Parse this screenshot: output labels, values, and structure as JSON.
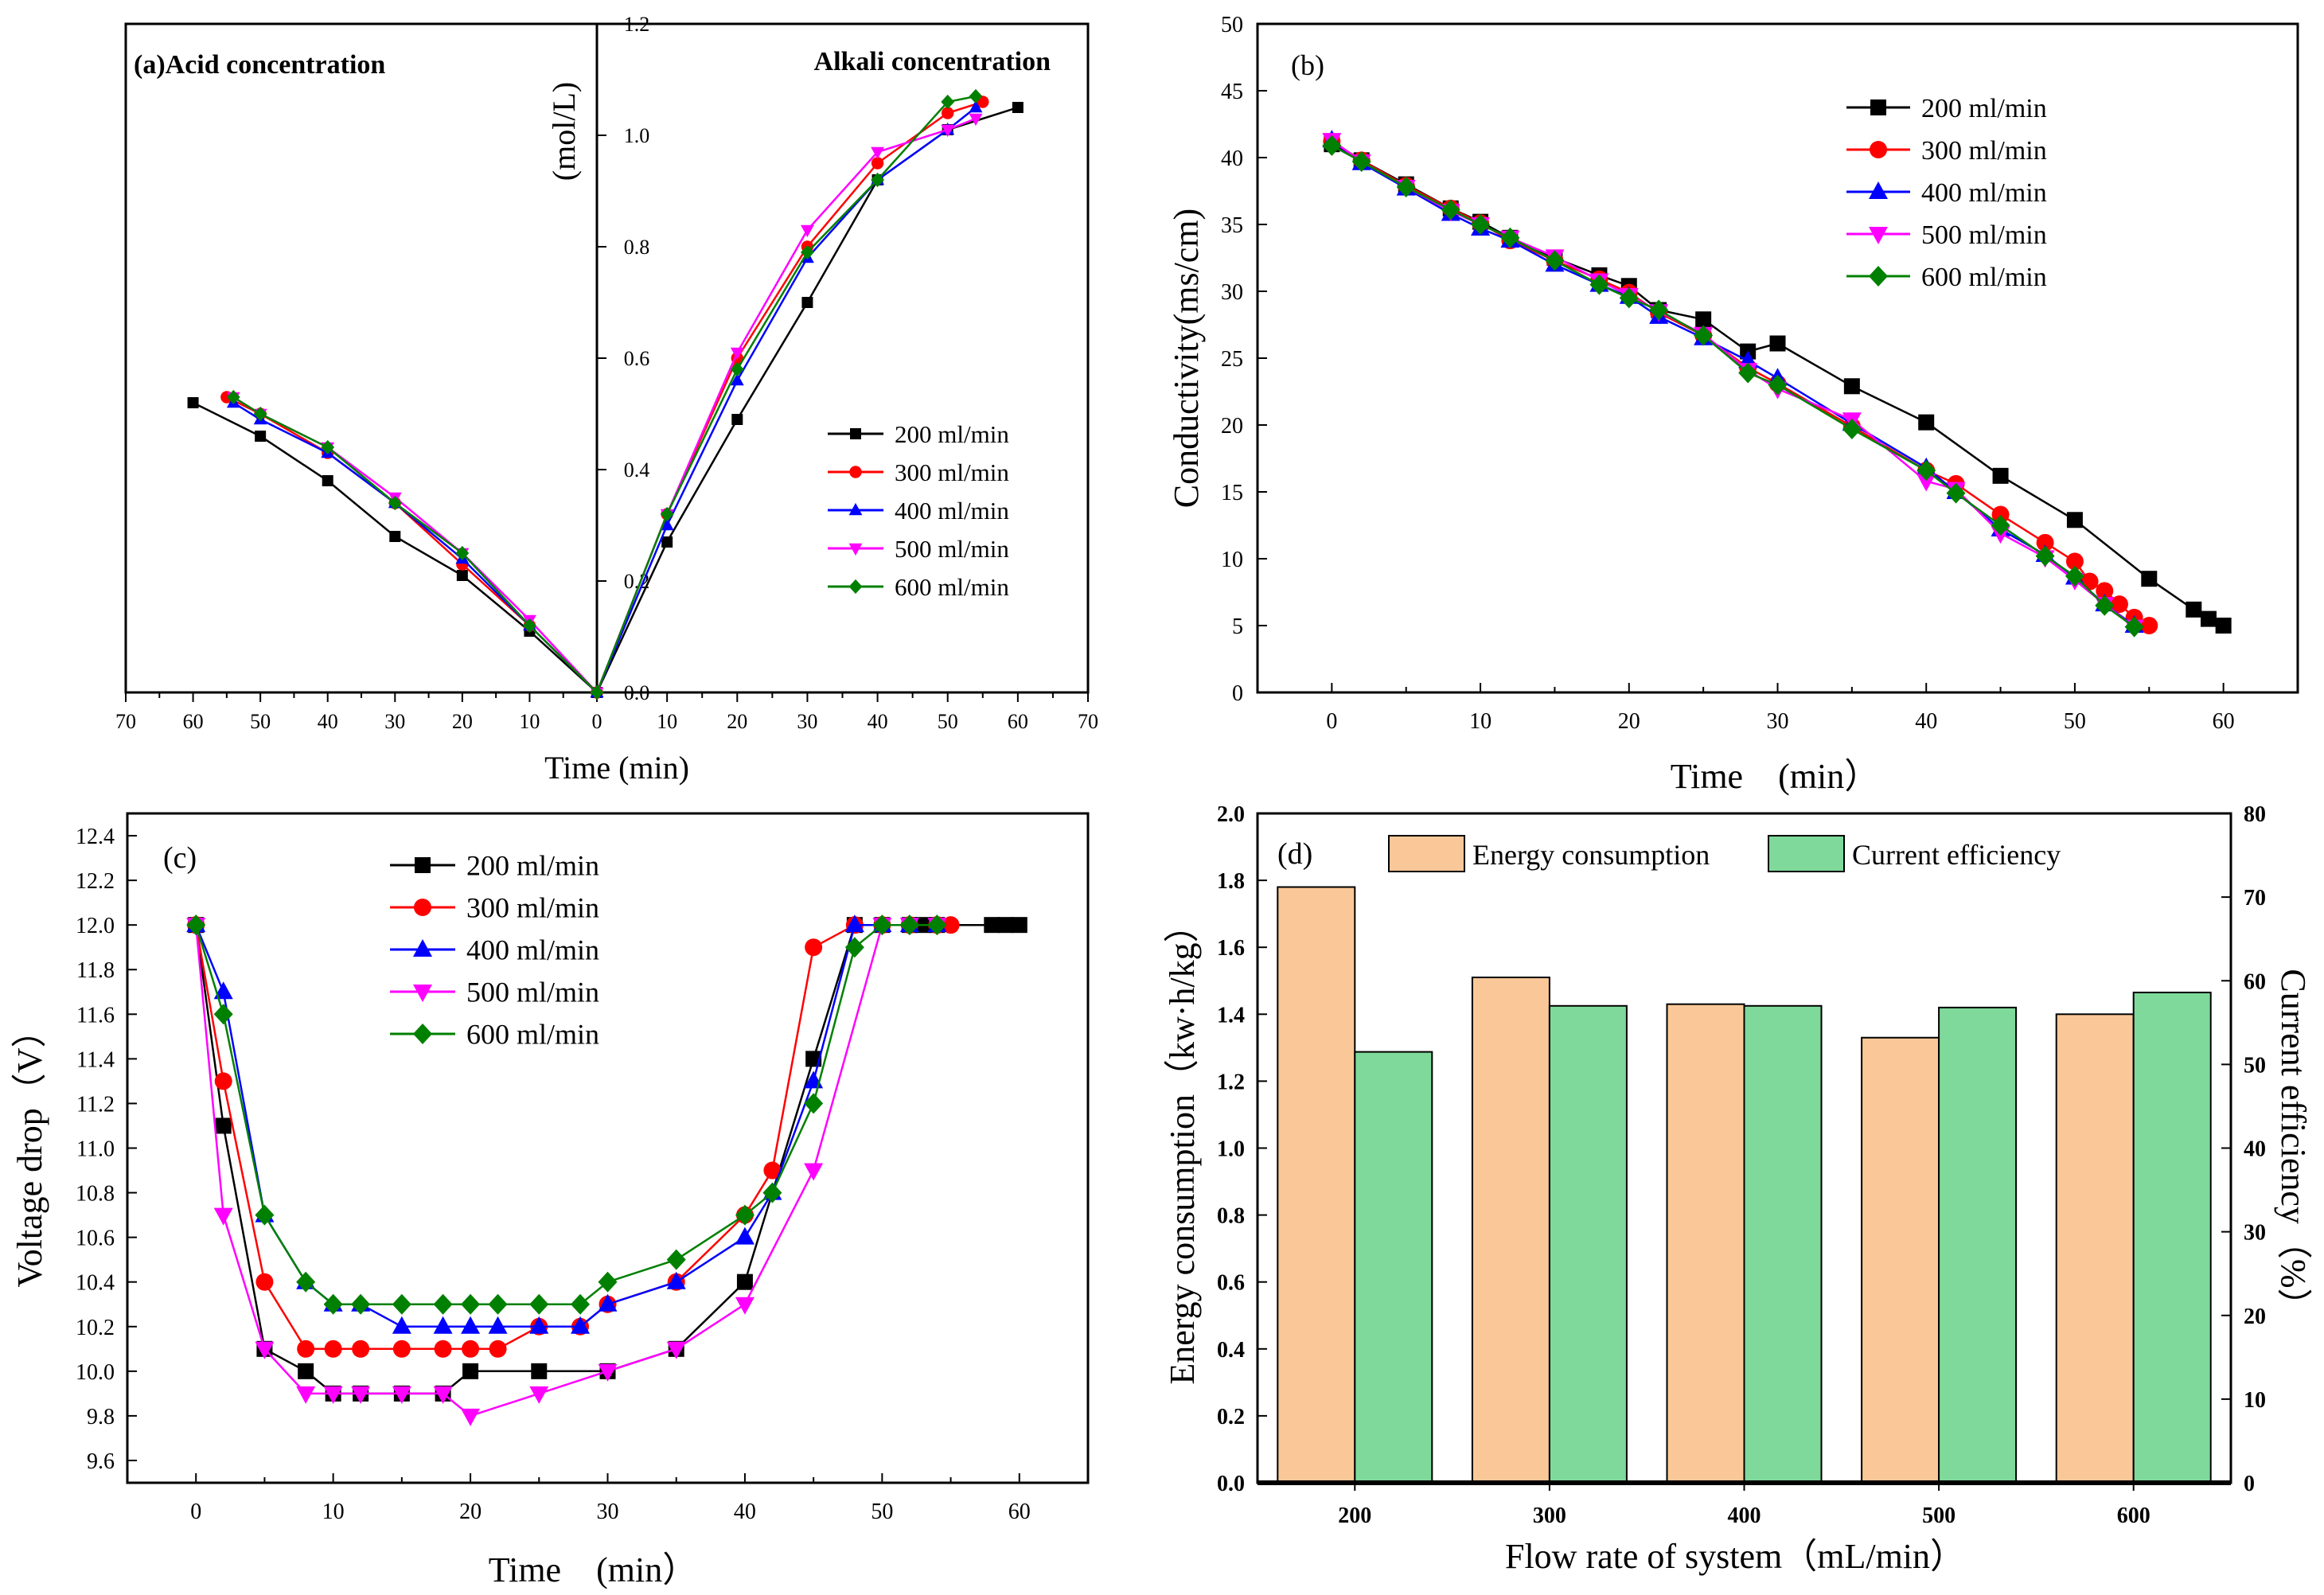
{
  "chart_data": [
    {
      "id": "a",
      "type": "line",
      "panel_label": "(a)Acid concentration",
      "right_title": "Alkali concentration",
      "xlabel": "Time (min)",
      "ylabel": "(mol/L)",
      "x_ticks": [
        "70",
        "60",
        "50",
        "40",
        "30",
        "20",
        "10",
        "0",
        "10",
        "20",
        "30",
        "40",
        "50",
        "60",
        "70"
      ],
      "y_ticks": [
        "0.0",
        "0.2",
        "0.4",
        "0.6",
        "0.8",
        "1.0",
        "1.2"
      ],
      "xlim_acid": [
        70,
        0
      ],
      "xlim_alkali": [
        0,
        70
      ],
      "ylim": [
        0,
        1.2
      ],
      "series": [
        {
          "name": "200 ml/min",
          "color": "#000000",
          "marker": "square",
          "acid": [
            [
              60,
              0.52
            ],
            [
              50,
              0.46
            ],
            [
              40,
              0.38
            ],
            [
              30,
              0.28
            ],
            [
              20,
              0.21
            ],
            [
              10,
              0.11
            ],
            [
              0,
              0
            ]
          ],
          "alkali": [
            [
              0,
              0
            ],
            [
              10,
              0.27
            ],
            [
              20,
              0.49
            ],
            [
              30,
              0.7
            ],
            [
              40,
              0.92
            ],
            [
              50,
              1.01
            ],
            [
              60,
              1.05
            ]
          ]
        },
        {
          "name": "300 ml/min",
          "color": "#ff0000",
          "marker": "circle",
          "acid": [
            [
              55,
              0.53
            ],
            [
              50,
              0.5
            ],
            [
              40,
              0.43
            ],
            [
              30,
              0.34
            ],
            [
              20,
              0.23
            ],
            [
              10,
              0.12
            ],
            [
              0,
              0
            ]
          ],
          "alkali": [
            [
              0,
              0
            ],
            [
              10,
              0.32
            ],
            [
              20,
              0.6
            ],
            [
              30,
              0.8
            ],
            [
              40,
              0.95
            ],
            [
              50,
              1.04
            ],
            [
              55,
              1.06
            ]
          ]
        },
        {
          "name": "400 ml/min",
          "color": "#0000ff",
          "marker": "triangle",
          "acid": [
            [
              54,
              0.52
            ],
            [
              50,
              0.49
            ],
            [
              40,
              0.43
            ],
            [
              30,
              0.34
            ],
            [
              20,
              0.24
            ],
            [
              10,
              0.12
            ],
            [
              0,
              0
            ]
          ],
          "alkali": [
            [
              0,
              0
            ],
            [
              10,
              0.3
            ],
            [
              20,
              0.56
            ],
            [
              30,
              0.78
            ],
            [
              40,
              0.92
            ],
            [
              50,
              1.01
            ],
            [
              54,
              1.05
            ]
          ]
        },
        {
          "name": "500 ml/min",
          "color": "#ff00ff",
          "marker": "triangle-down",
          "acid": [
            [
              54,
              0.53
            ],
            [
              50,
              0.5
            ],
            [
              40,
              0.44
            ],
            [
              30,
              0.35
            ],
            [
              20,
              0.25
            ],
            [
              10,
              0.13
            ],
            [
              0,
              0
            ]
          ],
          "alkali": [
            [
              0,
              0
            ],
            [
              10,
              0.32
            ],
            [
              20,
              0.61
            ],
            [
              30,
              0.83
            ],
            [
              40,
              0.97
            ],
            [
              50,
              1.01
            ],
            [
              54,
              1.03
            ]
          ]
        },
        {
          "name": "600 ml/min",
          "color": "#008000",
          "marker": "diamond",
          "acid": [
            [
              54,
              0.53
            ],
            [
              50,
              0.5
            ],
            [
              40,
              0.44
            ],
            [
              30,
              0.34
            ],
            [
              20,
              0.25
            ],
            [
              10,
              0.12
            ],
            [
              0,
              0
            ]
          ],
          "alkali": [
            [
              0,
              0
            ],
            [
              10,
              0.32
            ],
            [
              20,
              0.58
            ],
            [
              30,
              0.79
            ],
            [
              40,
              0.92
            ],
            [
              50,
              1.06
            ],
            [
              54,
              1.07
            ]
          ]
        }
      ]
    },
    {
      "id": "b",
      "type": "line",
      "panel_label": "(b)",
      "xlabel": "Time　(min）",
      "ylabel": "Conductivity(ms/cm)",
      "x_ticks": [
        "0",
        "10",
        "20",
        "30",
        "40",
        "50",
        "60"
      ],
      "y_ticks": [
        "0",
        "5",
        "10",
        "15",
        "20",
        "25",
        "30",
        "35",
        "40",
        "45",
        "50"
      ],
      "xlim": [
        -5,
        65
      ],
      "ylim": [
        0,
        50
      ],
      "series": [
        {
          "name": "200 ml/min",
          "color": "#000000",
          "marker": "square",
          "x": [
            0,
            2,
            5,
            8,
            10,
            12,
            15,
            18,
            20,
            22,
            25,
            28,
            30,
            35,
            40,
            45,
            50,
            55,
            58,
            59,
            60
          ],
          "y": [
            41,
            39.8,
            38,
            36.2,
            35.2,
            34,
            32.5,
            31.2,
            30.4,
            28.6,
            27.9,
            25.5,
            26.1,
            22.9,
            20.2,
            16.2,
            12.9,
            8.5,
            6.2,
            5.5,
            5.0
          ]
        },
        {
          "name": "300 ml/min",
          "color": "#ff0000",
          "marker": "circle",
          "x": [
            0,
            2,
            5,
            8,
            10,
            12,
            15,
            18,
            20,
            22,
            25,
            28,
            30,
            35,
            40,
            42,
            45,
            48,
            50,
            51,
            52,
            53,
            54,
            55
          ],
          "y": [
            41.2,
            39.8,
            37.9,
            36.2,
            35.1,
            33.8,
            32.3,
            30.9,
            29.9,
            28.4,
            26.7,
            24.3,
            23.1,
            19.9,
            16.6,
            15.6,
            13.3,
            11.2,
            9.8,
            8.3,
            7.6,
            6.6,
            5.6,
            5.0
          ]
        },
        {
          "name": "400 ml/min",
          "color": "#0000ff",
          "marker": "triangle",
          "x": [
            0,
            2,
            5,
            8,
            10,
            12,
            15,
            18,
            20,
            22,
            25,
            28,
            30,
            35,
            40,
            42,
            45,
            48,
            50,
            52,
            54
          ],
          "y": [
            41.3,
            39.6,
            37.7,
            35.8,
            34.7,
            33.8,
            32.0,
            30.5,
            29.6,
            28.1,
            26.5,
            24.8,
            23.5,
            20.1,
            16.8,
            15.0,
            12.2,
            10.3,
            8.6,
            6.6,
            5.0
          ]
        },
        {
          "name": "500 ml/min",
          "color": "#ff00ff",
          "marker": "triangle-down",
          "x": [
            0,
            2,
            5,
            8,
            10,
            12,
            15,
            18,
            20,
            22,
            25,
            28,
            30,
            35,
            40,
            42,
            45,
            48,
            50,
            52,
            54
          ],
          "y": [
            41.3,
            39.7,
            37.8,
            36.0,
            35.0,
            34.0,
            32.6,
            30.8,
            29.7,
            28.5,
            26.8,
            24.1,
            22.7,
            20.4,
            15.8,
            15.2,
            11.9,
            10.1,
            8.4,
            6.6,
            4.9
          ]
        },
        {
          "name": "600 ml/min",
          "color": "#008000",
          "marker": "diamond",
          "x": [
            0,
            2,
            5,
            8,
            10,
            12,
            15,
            18,
            20,
            22,
            25,
            28,
            30,
            35,
            40,
            42,
            45,
            48,
            50,
            52,
            54
          ],
          "y": [
            40.9,
            39.7,
            37.8,
            36.1,
            35.0,
            34.0,
            32.3,
            30.5,
            29.5,
            28.6,
            26.7,
            23.9,
            23.0,
            19.7,
            16.6,
            14.9,
            12.5,
            10.2,
            8.7,
            6.5,
            4.9
          ]
        }
      ]
    },
    {
      "id": "c",
      "type": "line",
      "panel_label": "(c)",
      "xlabel": "Time　(min）",
      "ylabel": "Voltage drop（V）",
      "x_ticks": [
        "0",
        "10",
        "20",
        "30",
        "40",
        "50",
        "60"
      ],
      "y_ticks": [
        "9.6",
        "9.8",
        "10.0",
        "10.2",
        "10.4",
        "10.6",
        "10.8",
        "11.0",
        "11.2",
        "11.4",
        "11.6",
        "11.8",
        "12.0",
        "12.2",
        "12.4"
      ],
      "xlim": [
        -5,
        65
      ],
      "ylim": [
        9.5,
        12.5
      ],
      "series": [
        {
          "name": "200 ml/min",
          "color": "#000000",
          "marker": "square",
          "x": [
            0,
            2,
            5,
            8,
            10,
            12,
            15,
            18,
            20,
            25,
            30,
            35,
            40,
            45,
            48,
            50,
            52,
            53,
            54,
            58,
            59,
            60
          ],
          "y": [
            12.0,
            11.1,
            10.1,
            10.0,
            9.9,
            9.9,
            9.9,
            9.9,
            10.0,
            10.0,
            10.0,
            10.1,
            10.4,
            11.4,
            12.0,
            12.0,
            12.0,
            12.0,
            12.0,
            12.0,
            12.0,
            12.0
          ]
        },
        {
          "name": "300 ml/min",
          "color": "#ff0000",
          "marker": "circle",
          "x": [
            0,
            2,
            5,
            8,
            10,
            12,
            15,
            18,
            20,
            22,
            25,
            28,
            30,
            35,
            40,
            42,
            45,
            48,
            50,
            52,
            54,
            55
          ],
          "y": [
            12.0,
            11.3,
            10.4,
            10.1,
            10.1,
            10.1,
            10.1,
            10.1,
            10.1,
            10.1,
            10.2,
            10.2,
            10.3,
            10.4,
            10.7,
            10.9,
            11.9,
            12.0,
            12.0,
            12.0,
            12.0,
            12.0
          ]
        },
        {
          "name": "400 ml/min",
          "color": "#0000ff",
          "marker": "triangle",
          "x": [
            0,
            2,
            5,
            8,
            10,
            12,
            15,
            18,
            20,
            22,
            25,
            28,
            30,
            35,
            40,
            42,
            45,
            48,
            50,
            52,
            54
          ],
          "y": [
            12.0,
            11.7,
            10.7,
            10.4,
            10.3,
            10.3,
            10.2,
            10.2,
            10.2,
            10.2,
            10.2,
            10.2,
            10.3,
            10.4,
            10.6,
            10.8,
            11.3,
            12.0,
            12.0,
            12.0,
            12.0
          ]
        },
        {
          "name": "500 ml/min",
          "color": "#ff00ff",
          "marker": "triangle-down",
          "x": [
            0,
            2,
            5,
            8,
            10,
            12,
            15,
            18,
            20,
            25,
            30,
            35,
            40,
            45,
            50,
            52,
            54
          ],
          "y": [
            12.0,
            10.7,
            10.1,
            9.9,
            9.9,
            9.9,
            9.9,
            9.9,
            9.8,
            9.9,
            10.0,
            10.1,
            10.3,
            10.9,
            12.0,
            12.0,
            12.0
          ]
        },
        {
          "name": "600 ml/min",
          "color": "#008000",
          "marker": "diamond",
          "x": [
            0,
            2,
            5,
            8,
            10,
            12,
            15,
            18,
            20,
            22,
            25,
            28,
            30,
            35,
            40,
            42,
            45,
            48,
            50,
            52,
            54
          ],
          "y": [
            12.0,
            11.6,
            10.7,
            10.4,
            10.3,
            10.3,
            10.3,
            10.3,
            10.3,
            10.3,
            10.3,
            10.3,
            10.4,
            10.5,
            10.7,
            10.8,
            11.2,
            11.9,
            12.0,
            12.0,
            12.0
          ]
        }
      ]
    },
    {
      "id": "d",
      "type": "bar",
      "panel_label": "(d)",
      "xlabel": "Flow rate of system（mL/min）",
      "ylabel": "Energy consumption（kw·h/kg）",
      "y2label": "Current efficiency（%）",
      "categories": [
        "200",
        "300",
        "400",
        "500",
        "600"
      ],
      "y_ticks": [
        "0.0",
        "0.2",
        "0.4",
        "0.6",
        "0.8",
        "1.0",
        "1.2",
        "1.4",
        "1.6",
        "1.8",
        "2.0"
      ],
      "y2_ticks": [
        "0",
        "10",
        "20",
        "30",
        "40",
        "50",
        "60",
        "70",
        "80"
      ],
      "ylim": [
        0,
        2.0
      ],
      "y2lim": [
        0,
        80
      ],
      "series": [
        {
          "name": "Energy consumption",
          "axis": "left",
          "color": "#fac898",
          "values": [
            1.78,
            1.51,
            1.43,
            1.33,
            1.4
          ]
        },
        {
          "name": "Current efficiency",
          "axis": "right",
          "color": "#7fd99a",
          "values": [
            51.5,
            57.0,
            57.0,
            56.8,
            58.6
          ]
        }
      ]
    }
  ]
}
